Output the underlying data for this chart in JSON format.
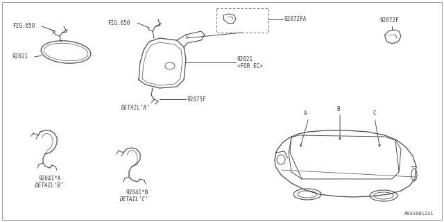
{
  "bg_color": "#ffffff",
  "line_color": "#4a4a4a",
  "text_color": "#3a3a3a",
  "font_size": 5.5,
  "watermark": "A931001231",
  "labels": {
    "fig650_left": "FIG.650",
    "part92021_left": "92021",
    "detail_a": "DETAIL’A’",
    "fig650_center": "FIG.650",
    "part92072fa": "92072FA",
    "part92021_ec": "92021",
    "part92021_ec2": "<FOR EC>",
    "part92075f": "92075F",
    "part92072f": "92072F",
    "part92041a": "92041*A",
    "detail_b": "DETAIL’B’",
    "part92041b": "92041*B",
    "detail_c": "DETAIL’C’",
    "label_a": "A",
    "label_b": "B",
    "label_c": "C"
  }
}
